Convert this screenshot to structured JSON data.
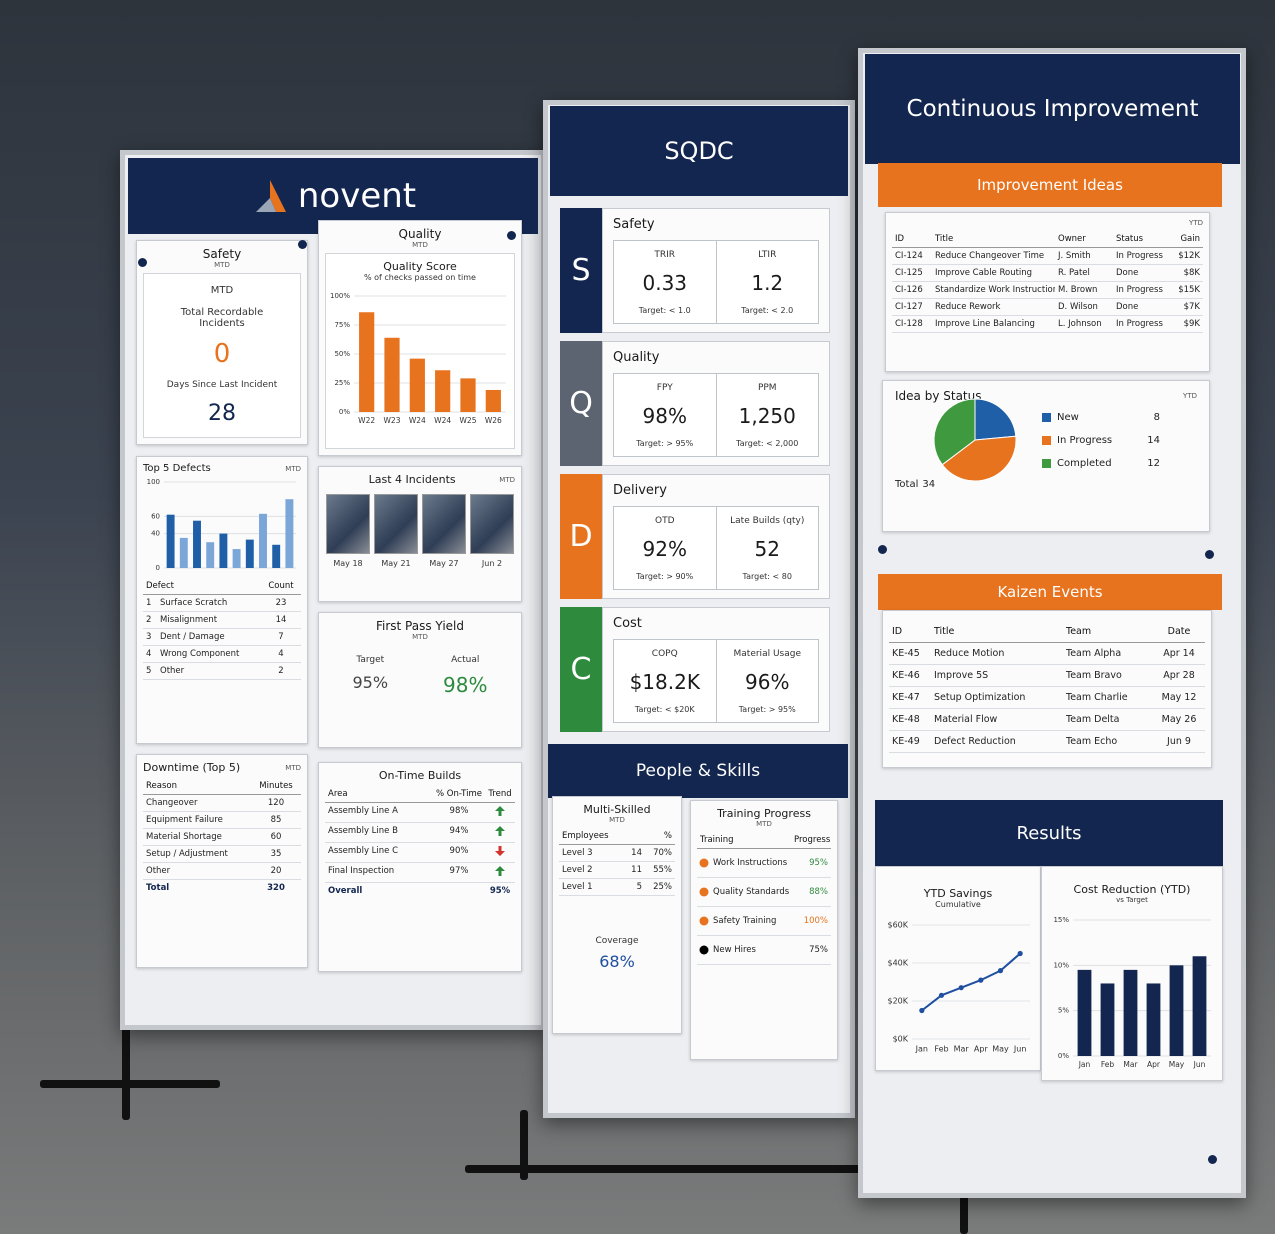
{
  "board1": {
    "logo": "novent",
    "safety": {
      "title": "Safety",
      "period": "MTD",
      "subtitle": "MTD",
      "label": "Total Recordable Incidents",
      "value": 0,
      "days_label": "Days Since Last Incident",
      "days": 28
    },
    "quality": {
      "title": "Quality",
      "period": "MTD",
      "chart": {
        "type": "bar",
        "title": "Quality Score",
        "subtitle": "% of checks passed on time",
        "categories": [
          "W22",
          "W23",
          "W24",
          "W24",
          "W25",
          "W26"
        ],
        "values": [
          86,
          64,
          46,
          36,
          29,
          19
        ],
        "color": "#e8731e",
        "ylim": [
          0,
          100
        ],
        "yticks": [
          {
            "value": 0,
            "label": "0%"
          },
          {
            "value": 25,
            "label": "25%"
          },
          {
            "value": 50,
            "label": "50%"
          },
          {
            "value": 75,
            "label": "75%"
          },
          {
            "value": 100,
            "label": "100%"
          }
        ]
      }
    },
    "defects": {
      "chart": {
        "type": "bar",
        "title": "Top 5 Defects",
        "period": "MTD",
        "categories": [
          null,
          null,
          null,
          null,
          null,
          null,
          null,
          null,
          null,
          null
        ],
        "values": [
          62,
          35,
          55,
          30,
          40,
          22,
          33,
          63,
          27,
          80
        ],
        "colors": [
          "#1f5fa8",
          "#7ba6d8"
        ],
        "ylim": [
          0,
          100
        ],
        "yticks": [
          0,
          40,
          60,
          100
        ]
      },
      "table": {
        "header": [
          "Defect",
          "Count"
        ],
        "rows": [
          [
            1,
            "Surface Scratch",
            23
          ],
          [
            2,
            "Misalignment",
            14
          ],
          [
            3,
            "Dent / Damage",
            7
          ],
          [
            4,
            "Wrong Component",
            4
          ],
          [
            5,
            "Other",
            2
          ]
        ]
      }
    },
    "incidents": {
      "title": "Last 4 Incidents",
      "period": "MTD",
      "dates": [
        "May 18",
        "May 21",
        "May 27",
        "Jun 2"
      ]
    },
    "fpy": {
      "title": "First Pass Yield",
      "period": "MTD",
      "target_label": "Target",
      "target": "95%",
      "actual_label": "Actual",
      "actual": "98%"
    },
    "downtime": {
      "title": "Downtime (Top 5)",
      "period": "MTD",
      "table": {
        "header": [
          "Reason",
          "Minutes"
        ],
        "rows": [
          [
            "Changeover",
            120
          ],
          [
            "Equipment Failure",
            85
          ],
          [
            "Material Shortage",
            60
          ],
          [
            "Setup / Adjustment",
            35
          ],
          [
            "Other",
            20
          ]
        ],
        "total": [
          "Total",
          320
        ]
      }
    },
    "ontime": {
      "title": "On-Time Builds",
      "table": {
        "header": [
          "Area",
          "% On-Time",
          "Trend"
        ],
        "rows": [
          [
            "Assembly Line A",
            "98%"
          ],
          [
            "Assembly Line B",
            "94%"
          ],
          [
            "Assembly Line C",
            "90%"
          ],
          [
            "Final Inspection",
            "97%"
          ]
        ],
        "total": [
          "Overall",
          "95%"
        ]
      }
    }
  },
  "board2": {
    "title": "SQDC",
    "rows": [
      {
        "letter": "S",
        "name": "Safety",
        "color": "#13264f",
        "metrics": [
          {
            "label": "TRIR",
            "value": "0.33",
            "target": "Target: < 1.0"
          },
          {
            "label": "LTIR",
            "value": "1.2",
            "target": "Target: < 2.0"
          }
        ]
      },
      {
        "letter": "Q",
        "name": "Quality",
        "color": "#5b6470",
        "metrics": [
          {
            "label": "FPY",
            "value": "98%",
            "target": "Target: > 95%"
          },
          {
            "label": "PPM",
            "value": "1,250",
            "target": "Target: < 2,000"
          }
        ]
      },
      {
        "letter": "D",
        "name": "Delivery",
        "color": "#e8731e",
        "metrics": [
          {
            "label": "OTD",
            "value": "92%",
            "target": "Target: > 90%"
          },
          {
            "label": "Late Builds (qty)",
            "value": "52",
            "target": "Target: < 80"
          }
        ]
      },
      {
        "letter": "C",
        "name": "Cost",
        "color": "#2e8b3e",
        "metrics": [
          {
            "label": "COPQ",
            "value": "$18.2K",
            "target": "Target: < $20K"
          },
          {
            "label": "Material Usage",
            "value": "96%",
            "target": "Target: > 95%"
          }
        ]
      }
    ],
    "people": {
      "title": "People & Skills",
      "multi": {
        "title": "Multi-Skilled",
        "period": "MTD",
        "table": {
          "header": [
            "Employees",
            "%"
          ],
          "rows": [
            [
              "Level 3",
              14,
              "70%"
            ],
            [
              "Level 2",
              11,
              "55%"
            ],
            [
              "Level 1",
              5,
              "25%"
            ]
          ]
        },
        "coverage_label": "Coverage",
        "coverage": "68%"
      },
      "training": {
        "title": "Training Progress",
        "period": "MTD",
        "table": {
          "header": [
            "Training",
            "Progress"
          ],
          "rows": [
            [
              "Work Instructions",
              "95%"
            ],
            [
              "Quality Standards",
              "88%"
            ],
            [
              "Safety Training",
              "100%"
            ],
            [
              "New Hires",
              "75%"
            ]
          ]
        }
      }
    }
  },
  "board3": {
    "title": "Continuous Improvement",
    "ideas": {
      "title": "Improvement Ideas",
      "period": "YTD",
      "table": {
        "header": [
          "ID",
          "Title",
          "Owner",
          "Status",
          "Gain"
        ],
        "rows": [
          [
            "CI-124",
            "Reduce Changeover Time",
            "J. Smith",
            "In Progress",
            "$12K"
          ],
          [
            "CI-125",
            "Improve Cable Routing",
            "R. Patel",
            "Done",
            "$8K"
          ],
          [
            "CI-126",
            "Standardize Work Instructions",
            "M. Brown",
            "In Progress",
            "$15K"
          ],
          [
            "CI-127",
            "Reduce Rework",
            "D. Wilson",
            "Done",
            "$7K"
          ],
          [
            "CI-128",
            "Improve Line Balancing",
            "L. Johnson",
            "In Progress",
            "$9K"
          ]
        ]
      }
    },
    "status": {
      "chart": {
        "type": "pie",
        "title": "Idea by Status",
        "period": "YTD",
        "categories": [
          "New",
          "In Progress",
          "Completed"
        ],
        "values": [
          8,
          14,
          12
        ],
        "colors": [
          "#1f5fa8",
          "#e8731e",
          "#3f9a3f"
        ],
        "total_label": "Total",
        "total": 34
      }
    },
    "kaizen": {
      "title": "Kaizen Events",
      "table": {
        "header": [
          "ID",
          "Title",
          "Team",
          "Date"
        ],
        "rows": [
          [
            "KE-45",
            "Reduce Motion",
            "Team Alpha",
            "Apr 14"
          ],
          [
            "KE-46",
            "Improve 5S",
            "Team Bravo",
            "Apr 28"
          ],
          [
            "KE-47",
            "Setup Optimization",
            "Team Charlie",
            "May 12"
          ],
          [
            "KE-48",
            "Material Flow",
            "Team Delta",
            "May 26"
          ],
          [
            "KE-49",
            "Defect Reduction",
            "Team Echo",
            "Jun 9"
          ]
        ]
      }
    },
    "results": {
      "title": "Results",
      "savings": {
        "chart": {
          "type": "line",
          "title": "YTD Savings",
          "subtitle": "Cumulative",
          "categories": [
            "Jan",
            "Feb",
            "Mar",
            "Apr",
            "May",
            "Jun"
          ],
          "values": [
            15000,
            23000,
            27000,
            31000,
            36000,
            45000
          ],
          "color": "#1f4fa0",
          "ylim": [
            0,
            60000
          ],
          "yticks": [
            {
              "value": 0,
              "label": "$0K"
            },
            {
              "value": 20000,
              "label": "$20K"
            },
            {
              "value": 40000,
              "label": "$40K"
            },
            {
              "value": 60000,
              "label": "$60K"
            }
          ]
        }
      },
      "cost": {
        "chart": {
          "type": "bar",
          "title": "Cost Reduction (YTD)",
          "subtitle": "vs Target",
          "categories": [
            "Jan",
            "Feb",
            "Mar",
            "Apr",
            "May",
            "Jun"
          ],
          "values": [
            9.5,
            8,
            9.5,
            8,
            10,
            11
          ],
          "color": "#13264f",
          "ylim": [
            0,
            15
          ],
          "yticks": [
            {
              "value": 0,
              "label": "0%"
            },
            {
              "value": 5,
              "label": "5%"
            },
            {
              "value": 10,
              "label": "10%"
            },
            {
              "value": 15,
              "label": "15%"
            }
          ]
        }
      }
    }
  }
}
